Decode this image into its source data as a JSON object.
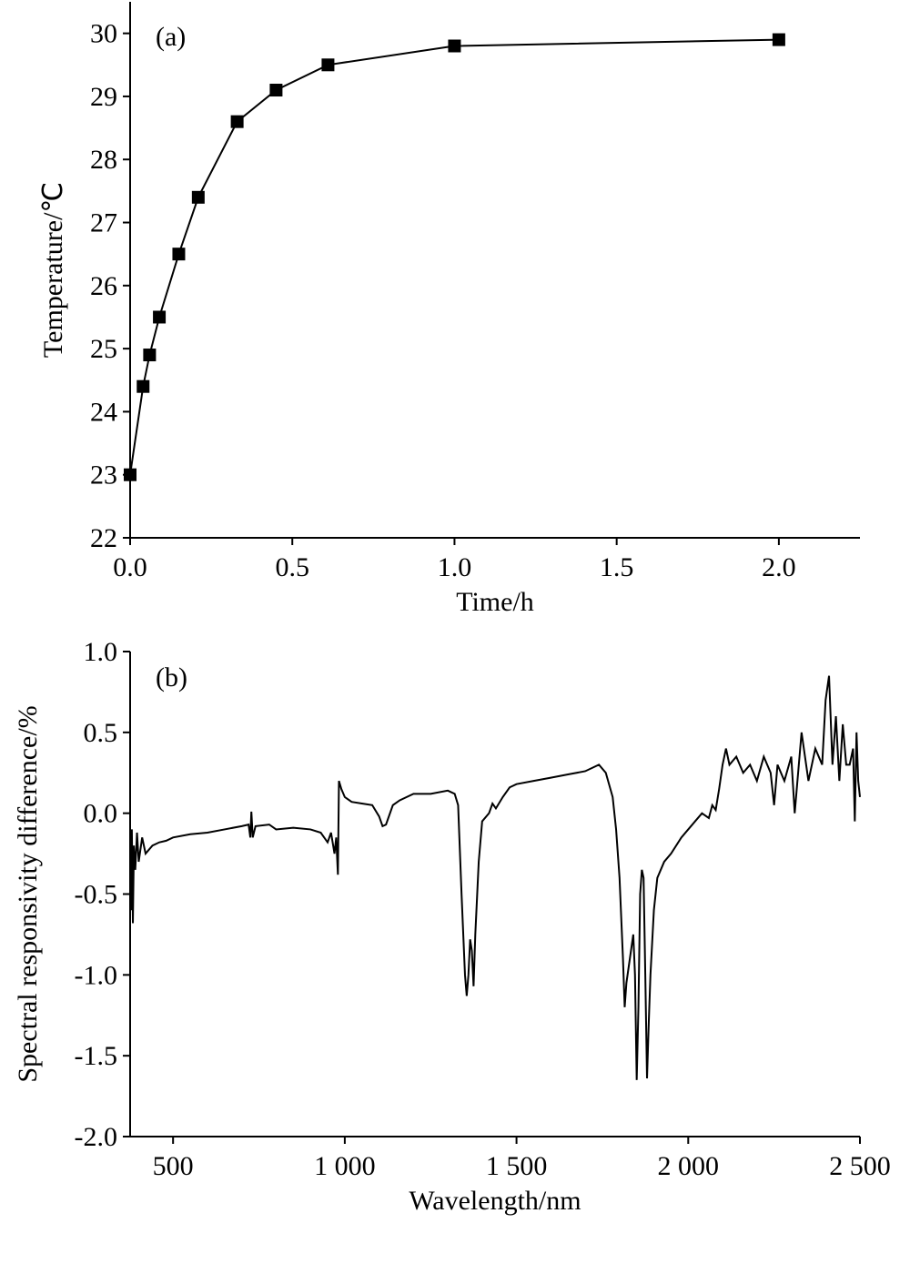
{
  "chart_data": [
    {
      "type": "line",
      "annotation": "(a)",
      "xlabel": "Time/h",
      "ylabel": "Temperature/℃",
      "x": [
        0,
        0.04,
        0.06,
        0.09,
        0.15,
        0.21,
        0.33,
        0.45,
        0.61,
        1.0,
        2.0
      ],
      "series": [
        {
          "color": "#000000",
          "marker": "square",
          "values": [
            23,
            24.4,
            24.9,
            25.5,
            26.5,
            27.4,
            28.6,
            29.1,
            29.5,
            29.8,
            29.9
          ]
        }
      ],
      "xlim": [
        0,
        2.25
      ],
      "ylim": [
        22,
        30.5
      ],
      "xticks": [
        {
          "value": 0,
          "label": "0.0"
        },
        {
          "value": 0.5,
          "label": "0.5"
        },
        {
          "value": 1,
          "label": "1.0"
        },
        {
          "value": 1.5,
          "label": "1.5"
        },
        {
          "value": 2,
          "label": "2.0"
        }
      ],
      "yticks": [
        22,
        23,
        24,
        25,
        26,
        27,
        28,
        29,
        30
      ]
    },
    {
      "type": "line",
      "annotation": "(b)",
      "xlabel": "Wavelength/nm",
      "ylabel": "Spectral responsivity difference/%",
      "x": [
        375,
        378,
        380,
        383,
        386,
        390,
        395,
        400,
        410,
        420,
        440,
        460,
        480,
        500,
        550,
        600,
        650,
        700,
        720,
        725,
        728,
        732,
        740,
        780,
        800,
        850,
        900,
        930,
        950,
        960,
        970,
        975,
        980,
        983,
        990,
        1000,
        1020,
        1050,
        1080,
        1100,
        1110,
        1120,
        1140,
        1160,
        1200,
        1250,
        1300,
        1320,
        1330,
        1340,
        1350,
        1355,
        1360,
        1365,
        1370,
        1375,
        1380,
        1390,
        1400,
        1420,
        1430,
        1440,
        1460,
        1480,
        1500,
        1550,
        1600,
        1650,
        1700,
        1740,
        1760,
        1780,
        1790,
        1800,
        1810,
        1815,
        1820,
        1830,
        1840,
        1845,
        1850,
        1855,
        1860,
        1865,
        1870,
        1875,
        1880,
        1885,
        1890,
        1900,
        1910,
        1930,
        1950,
        1980,
        2000,
        2020,
        2040,
        2060,
        2070,
        2080,
        2090,
        2100,
        2110,
        2120,
        2140,
        2160,
        2180,
        2200,
        2220,
        2240,
        2250,
        2260,
        2280,
        2300,
        2310,
        2330,
        2350,
        2370,
        2390,
        2400,
        2410,
        2420,
        2430,
        2440,
        2450,
        2460,
        2470,
        2480,
        2485,
        2490,
        2495,
        2500
      ],
      "series": [
        {
          "color": "#000000",
          "values": [
            -0.3,
            -0.6,
            -0.1,
            -0.68,
            -0.2,
            -0.35,
            -0.12,
            -0.3,
            -0.15,
            -0.25,
            -0.2,
            -0.18,
            -0.17,
            -0.15,
            -0.13,
            -0.12,
            -0.1,
            -0.08,
            -0.07,
            -0.15,
            0.01,
            -0.15,
            -0.08,
            -0.07,
            -0.1,
            -0.09,
            -0.1,
            -0.12,
            -0.18,
            -0.12,
            -0.25,
            -0.15,
            -0.38,
            0.2,
            0.15,
            0.1,
            0.07,
            0.06,
            0.05,
            -0.02,
            -0.08,
            -0.07,
            0.05,
            0.08,
            0.12,
            0.12,
            0.14,
            0.12,
            0.05,
            -0.5,
            -1.0,
            -1.13,
            -1.0,
            -0.78,
            -0.85,
            -1.07,
            -0.75,
            -0.3,
            -0.05,
            0.0,
            0.06,
            0.03,
            0.1,
            0.16,
            0.18,
            0.2,
            0.22,
            0.24,
            0.26,
            0.3,
            0.25,
            0.1,
            -0.1,
            -0.4,
            -0.9,
            -1.2,
            -1.05,
            -0.9,
            -0.75,
            -1.0,
            -1.65,
            -1.2,
            -0.5,
            -0.35,
            -0.4,
            -1.0,
            -1.64,
            -1.3,
            -1.0,
            -0.6,
            -0.4,
            -0.3,
            -0.25,
            -0.15,
            -0.1,
            -0.05,
            0.0,
            -0.03,
            0.05,
            0.02,
            0.15,
            0.3,
            0.4,
            0.3,
            0.35,
            0.25,
            0.3,
            0.2,
            0.35,
            0.25,
            0.05,
            0.3,
            0.2,
            0.35,
            0.0,
            0.5,
            0.2,
            0.4,
            0.3,
            0.7,
            0.85,
            0.3,
            0.6,
            0.2,
            0.55,
            0.3,
            0.3,
            0.4,
            -0.05,
            0.5,
            0.2,
            0.1
          ]
        }
      ],
      "xlim": [
        375,
        2500
      ],
      "ylim": [
        -2,
        1
      ],
      "xticks": [
        500,
        {
          "value": 1000,
          "label": "1 000"
        },
        {
          "value": 1500,
          "label": "1 500"
        },
        {
          "value": 2000,
          "label": "2 000"
        },
        {
          "value": 2500,
          "label": "2 500"
        }
      ],
      "yticks": [
        {
          "value": -2,
          "label": "-2.0"
        },
        {
          "value": -1.5,
          "label": "-1.5"
        },
        {
          "value": -1,
          "label": "-1.0"
        },
        {
          "value": -0.5,
          "label": "-0.5"
        },
        {
          "value": 0,
          "label": "0.0"
        },
        {
          "value": 0.5,
          "label": "0.5"
        },
        {
          "value": 1,
          "label": "1.0"
        }
      ]
    }
  ]
}
